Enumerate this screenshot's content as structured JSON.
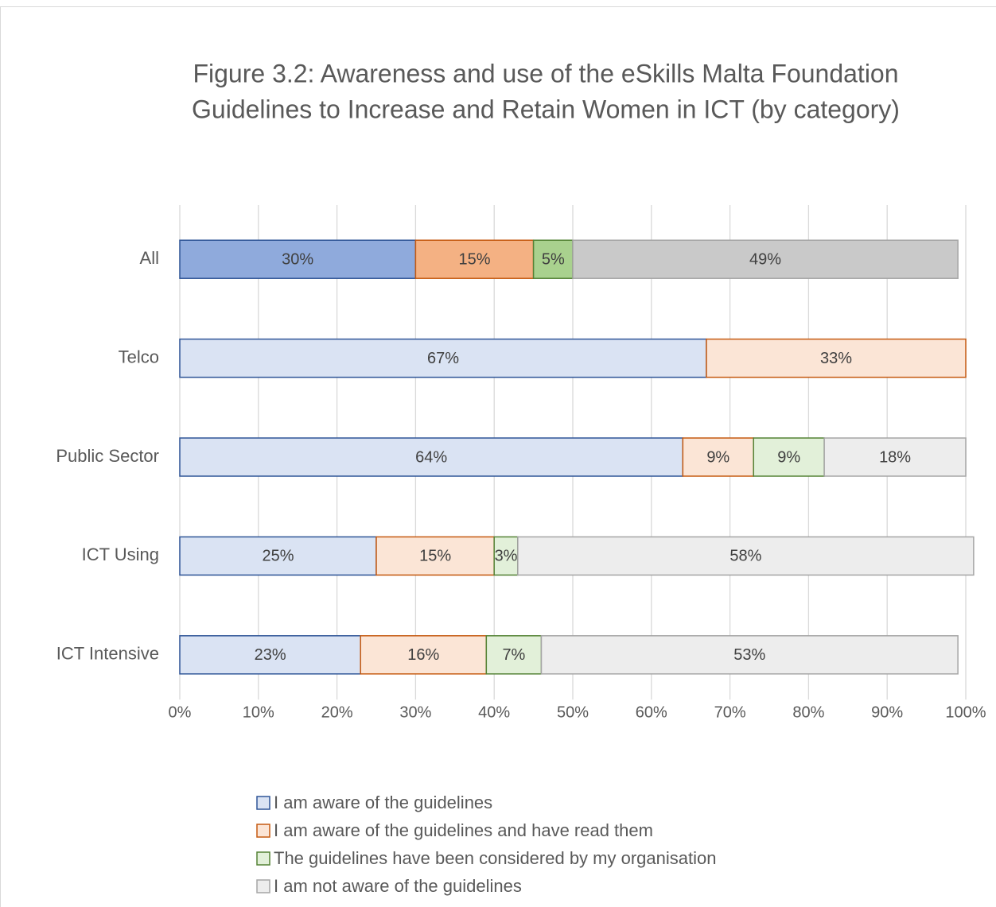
{
  "chart_data": {
    "type": "stacked_bar_horizontal",
    "title": "Figure 3.2: Awareness and use of the eSkills Malta Foundation Guidelines to Increase and Retain Women in ICT (by category)",
    "categories": [
      "All",
      "Telco",
      "Public Sector",
      "ICT Using",
      "ICT Intensive"
    ],
    "series": [
      {
        "name": "I am aware of the guidelines",
        "color": "#dae3f3",
        "edgecolor": "#2f5597",
        "colors": [
          "#8faadc",
          "#dae3f3",
          "#dae3f3",
          "#dae3f3",
          "#dae3f3"
        ],
        "values": [
          30,
          67,
          64,
          25,
          23
        ],
        "value_labels": [
          "30%",
          "67%",
          "64%",
          "25%",
          "23%"
        ]
      },
      {
        "name": "I am aware of the guidelines and have read them",
        "color": "#fbe5d6",
        "edgecolor": "#c55a11",
        "colors": [
          "#f4b183",
          "#fbe5d6",
          "#fbe5d6",
          "#fbe5d6",
          "#fbe5d6"
        ],
        "values": [
          15,
          33,
          9,
          15,
          16
        ],
        "value_labels": [
          "15%",
          "33%",
          "9%",
          "15%",
          "16%"
        ]
      },
      {
        "name": "The guidelines have been considered by my organisation",
        "color": "#e2f0d9",
        "edgecolor": "#548235",
        "colors": [
          "#a9d18e",
          "#e2f0d9",
          "#e2f0d9",
          "#e2f0d9",
          "#e2f0d9"
        ],
        "values": [
          5,
          null,
          9,
          3,
          7
        ],
        "value_labels": [
          "5%",
          null,
          "9%",
          "3%",
          "7%"
        ]
      },
      {
        "name": "I am not aware of the guidelines",
        "color": "#ededed",
        "edgecolor": "#a5a5a5",
        "colors": [
          "#c9c9c9",
          "#ededed",
          "#ededed",
          "#ededed",
          "#ededed"
        ],
        "values": [
          49,
          null,
          18,
          58,
          53
        ],
        "value_labels": [
          "49%",
          null,
          "18%",
          "58%",
          "53%"
        ]
      }
    ],
    "xlim": [
      0,
      100
    ],
    "xticks": [
      {
        "value": 0,
        "label": "0%"
      },
      {
        "value": 10,
        "label": "10%"
      },
      {
        "value": 20,
        "label": "20%"
      },
      {
        "value": 30,
        "label": "30%"
      },
      {
        "value": 40,
        "label": "40%"
      },
      {
        "value": 50,
        "label": "50%"
      },
      {
        "value": 60,
        "label": "60%"
      },
      {
        "value": 70,
        "label": "70%"
      },
      {
        "value": 80,
        "label": "80%"
      },
      {
        "value": 90,
        "label": "90%"
      },
      {
        "value": 100,
        "label": "100%"
      }
    ],
    "grid": true,
    "legend": "bottom"
  }
}
